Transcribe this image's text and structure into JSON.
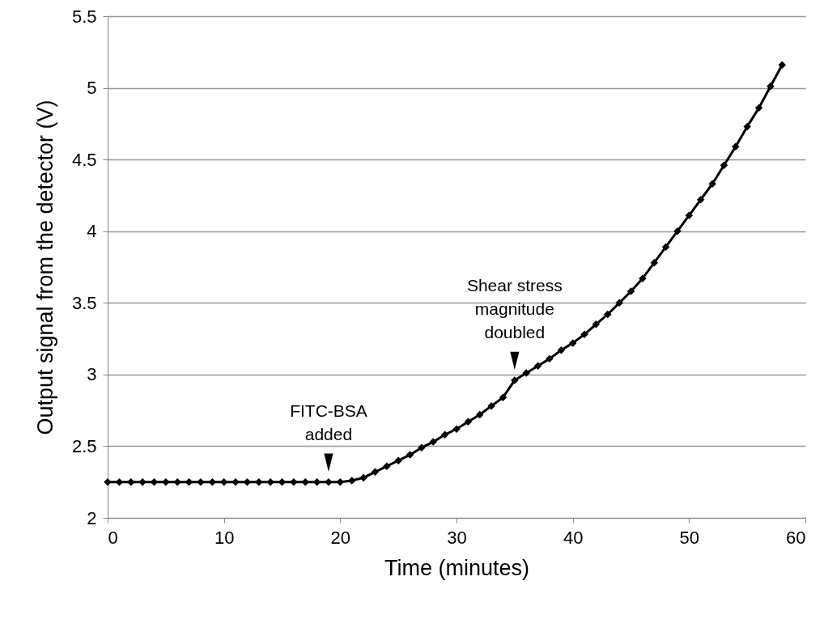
{
  "chart_data": {
    "type": "line",
    "xlabel": "Time (minutes)",
    "ylabel": "Output signal from the detector (V)",
    "x": [
      0,
      1,
      2,
      3,
      4,
      5,
      6,
      7,
      8,
      9,
      10,
      11,
      12,
      13,
      14,
      15,
      16,
      17,
      18,
      19,
      20,
      21,
      22,
      23,
      24,
      25,
      26,
      27,
      28,
      29,
      30,
      31,
      32,
      33,
      34,
      35,
      36,
      37,
      38,
      39,
      40,
      41,
      42,
      43,
      44,
      45,
      46,
      47,
      48,
      49,
      50,
      51,
      52,
      53,
      54,
      55,
      56,
      57,
      58
    ],
    "series": [
      {
        "color": "#000000",
        "values": [
          2.25,
          2.25,
          2.25,
          2.25,
          2.25,
          2.25,
          2.25,
          2.25,
          2.25,
          2.25,
          2.25,
          2.25,
          2.25,
          2.25,
          2.25,
          2.25,
          2.25,
          2.25,
          2.25,
          2.25,
          2.25,
          2.26,
          2.28,
          2.32,
          2.36,
          2.4,
          2.44,
          2.49,
          2.53,
          2.58,
          2.62,
          2.67,
          2.72,
          2.78,
          2.84,
          2.96,
          3.01,
          3.06,
          3.11,
          3.17,
          3.22,
          3.28,
          3.35,
          3.42,
          3.5,
          3.58,
          3.67,
          3.78,
          3.89,
          4.0,
          4.11,
          4.22,
          4.33,
          4.46,
          4.59,
          4.73,
          4.86,
          5.01,
          5.16
        ]
      }
    ],
    "xlim": [
      0,
      60
    ],
    "xticks": [
      0,
      10,
      20,
      30,
      40,
      50,
      60
    ],
    "ylim": [
      2,
      5.5
    ],
    "yticks": [
      2,
      2.5,
      3,
      3.5,
      4,
      4.5,
      5,
      5.5
    ],
    "grid": "y",
    "marker": "diamond",
    "line_style": "solid",
    "annotations": [
      {
        "text": "FITC-BSA\nadded",
        "x": 19,
        "y": 2.25
      },
      {
        "text": "Shear stress\nmagnitude\ndoubled",
        "x": 35,
        "y": 2.96
      }
    ]
  }
}
